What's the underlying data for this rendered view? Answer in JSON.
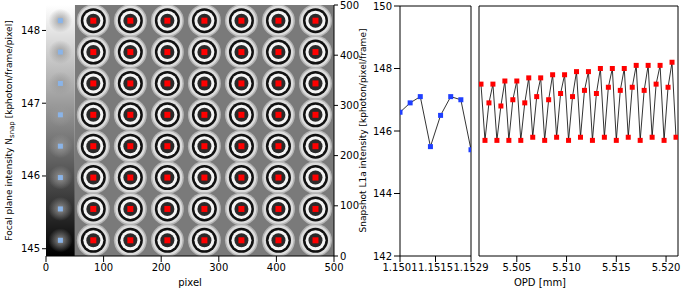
{
  "chart_data": [
    {
      "type": "image",
      "xlabel": "pixel",
      "xlim": [
        0,
        500
      ],
      "xticks": [
        0,
        100,
        200,
        300,
        400,
        500
      ],
      "ylim": [
        0,
        500
      ],
      "yticks": [
        0,
        100,
        200,
        300,
        400,
        500
      ],
      "colorbar": {
        "label": "Focal plane intensity N",
        "label_subscript": "snap",
        "label_suffix": " [kphoton/frame/pixel]",
        "range": [
          144.9,
          148.35
        ],
        "ticks": [
          145,
          146,
          147,
          148
        ]
      }
    },
    {
      "type": "line",
      "xlabel": "OPD [mm]",
      "ylabel": "Snapshot L1a intensity [kphoton/pixel/frame]",
      "ylim": [
        142,
        150
      ],
      "yticks": [
        142,
        144,
        146,
        148,
        150
      ],
      "series": [
        {
          "color": "#1f3fff",
          "marker": "square",
          "xlim": [
            1.1501,
            1.1529
          ],
          "xticks": [
            1.1501,
            1.1515,
            1.1529
          ],
          "x": [
            1.1501,
            1.1505,
            1.1509,
            1.1513,
            1.1517,
            1.1521,
            1.1525,
            1.1529
          ],
          "values": [
            146.6,
            146.9,
            147.1,
            145.5,
            146.5,
            147.1,
            147.0,
            145.4
          ]
        },
        {
          "color": "#ff0000",
          "marker": "square",
          "xlim": [
            5.5012,
            5.5212
          ],
          "xticks": [
            5.505,
            {
              "value": 5.51,
              "label": "5.510"
            },
            5.515,
            {
              "value": 5.52,
              "label": "5.520"
            }
          ],
          "x": [
            5.5014,
            5.5018,
            5.5022,
            5.5026,
            5.503,
            5.5034,
            5.5038,
            5.5042,
            5.5046,
            5.505,
            5.5054,
            5.5058,
            5.5062,
            5.5066,
            5.507,
            5.5074,
            5.5078,
            5.5082,
            5.5086,
            5.509,
            5.5094,
            5.5098,
            5.5102,
            5.5106,
            5.511,
            5.5114,
            5.5118,
            5.5122,
            5.5126,
            5.513,
            5.5134,
            5.5138,
            5.5142,
            5.5146,
            5.515,
            5.5154,
            5.5158,
            5.5162,
            5.5166,
            5.517,
            5.5174,
            5.5178,
            5.5182,
            5.5186,
            5.519,
            5.5194,
            5.5198,
            5.5202,
            5.5206,
            5.521
          ],
          "values": [
            147.5,
            145.7,
            146.9,
            147.5,
            145.7,
            146.8,
            147.6,
            145.7,
            147.0,
            147.6,
            145.7,
            146.9,
            147.7,
            145.8,
            147.1,
            147.7,
            145.7,
            147.0,
            147.8,
            145.8,
            147.2,
            147.8,
            145.7,
            147.1,
            147.9,
            145.8,
            147.3,
            147.9,
            145.7,
            147.2,
            148.0,
            145.8,
            147.4,
            148.0,
            145.7,
            147.3,
            148.0,
            145.8,
            147.4,
            148.1,
            145.7,
            147.3,
            148.1,
            145.8,
            147.5,
            148.1,
            145.7,
            147.4,
            148.2,
            145.8
          ]
        }
      ]
    }
  ]
}
